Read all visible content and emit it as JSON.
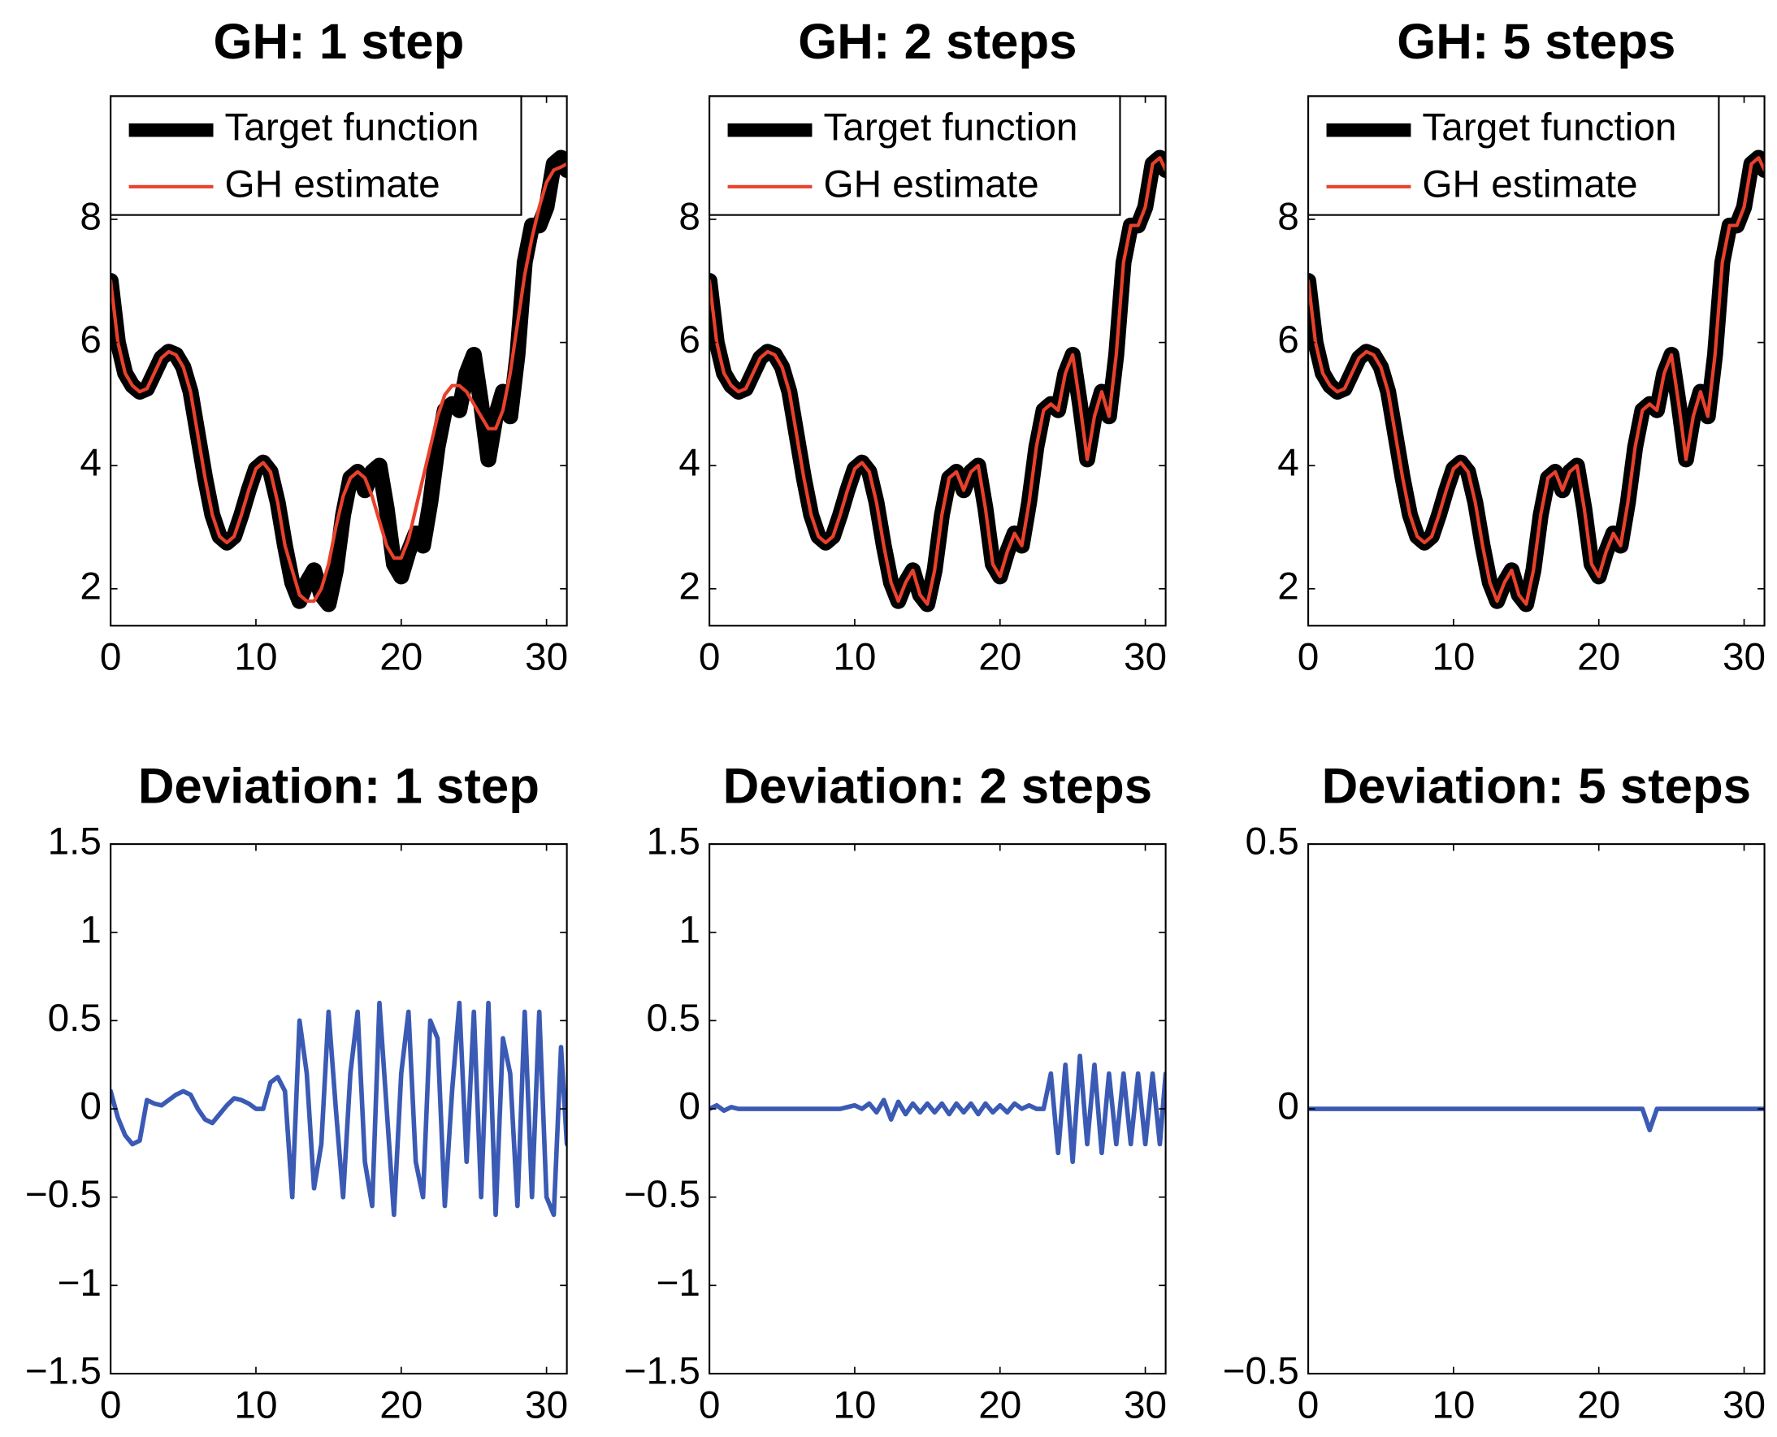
{
  "chart_data": [
    {
      "type": "line",
      "title": "GH: 1 step",
      "legend": "upper left",
      "x": [
        0,
        0.5,
        1,
        1.5,
        2,
        2.5,
        3,
        3.5,
        4,
        4.5,
        5,
        5.5,
        6,
        6.5,
        7,
        7.5,
        8,
        8.5,
        9,
        9.5,
        10,
        10.5,
        11,
        11.5,
        12,
        12.5,
        13,
        13.5,
        14,
        14.5,
        15,
        15.5,
        16,
        16.5,
        17,
        17.5,
        18,
        18.5,
        19,
        19.5,
        20,
        20.5,
        21,
        21.5,
        22,
        22.5,
        23,
        23.5,
        24,
        24.5,
        25,
        25.5,
        26,
        26.5,
        27,
        27.5,
        28,
        28.5,
        29,
        29.5,
        30,
        30.5,
        31,
        31.4
      ],
      "series": [
        {
          "name": "Target function",
          "color": "#000000",
          "values": [
            7,
            6.0,
            5.5,
            5.3,
            5.2,
            5.25,
            5.5,
            5.75,
            5.85,
            5.8,
            5.6,
            5.2,
            4.5,
            3.8,
            3.2,
            2.85,
            2.75,
            2.85,
            3.2,
            3.6,
            3.95,
            4.05,
            3.9,
            3.4,
            2.7,
            2.1,
            1.8,
            2.1,
            2.3,
            1.9,
            1.75,
            2.3,
            3.2,
            3.8,
            3.9,
            3.6,
            3.9,
            4.0,
            3.3,
            2.4,
            2.2,
            2.6,
            2.9,
            2.7,
            3.4,
            4.3,
            4.9,
            5.0,
            4.9,
            5.5,
            5.8,
            5.0,
            4.1,
            4.8,
            5.2,
            4.8,
            5.8,
            7.3,
            7.9,
            7.9,
            8.2,
            8.9,
            9.0,
            8.8
          ]
        },
        {
          "name": "GH estimate",
          "color": "#e8412c",
          "values": [
            7,
            6.0,
            5.5,
            5.3,
            5.2,
            5.25,
            5.5,
            5.75,
            5.85,
            5.8,
            5.6,
            5.2,
            4.5,
            3.8,
            3.2,
            2.85,
            2.75,
            2.85,
            3.2,
            3.6,
            3.95,
            4.05,
            3.9,
            3.4,
            2.7,
            2.3,
            1.9,
            1.8,
            1.8,
            2.0,
            2.4,
            3.0,
            3.5,
            3.8,
            3.9,
            3.8,
            3.5,
            3.1,
            2.7,
            2.5,
            2.5,
            2.8,
            3.3,
            3.8,
            4.3,
            4.8,
            5.15,
            5.3,
            5.3,
            5.2,
            5.0,
            4.8,
            4.6,
            4.6,
            4.9,
            5.5,
            6.3,
            7.1,
            7.7,
            8.2,
            8.6,
            8.8,
            8.85,
            8.9
          ]
        }
      ],
      "xlim": [
        0,
        31.4
      ],
      "xticks": [
        0,
        10,
        20,
        30
      ],
      "ylim": [
        1.4,
        10
      ],
      "yticks": [
        2,
        4,
        6,
        8
      ]
    },
    {
      "type": "line",
      "title": "GH: 2 steps",
      "legend": "upper left",
      "x": [
        0,
        0.5,
        1,
        1.5,
        2,
        2.5,
        3,
        3.5,
        4,
        4.5,
        5,
        5.5,
        6,
        6.5,
        7,
        7.5,
        8,
        8.5,
        9,
        9.5,
        10,
        10.5,
        11,
        11.5,
        12,
        12.5,
        13,
        13.5,
        14,
        14.5,
        15,
        15.5,
        16,
        16.5,
        17,
        17.5,
        18,
        18.5,
        19,
        19.5,
        20,
        20.5,
        21,
        21.5,
        22,
        22.5,
        23,
        23.5,
        24,
        24.5,
        25,
        25.5,
        26,
        26.5,
        27,
        27.5,
        28,
        28.5,
        29,
        29.5,
        30,
        30.5,
        31,
        31.4
      ],
      "series": [
        {
          "name": "Target function",
          "color": "#000000",
          "values": [
            7,
            6.0,
            5.5,
            5.3,
            5.2,
            5.25,
            5.5,
            5.75,
            5.85,
            5.8,
            5.6,
            5.2,
            4.5,
            3.8,
            3.2,
            2.85,
            2.75,
            2.85,
            3.2,
            3.6,
            3.95,
            4.05,
            3.9,
            3.4,
            2.7,
            2.1,
            1.8,
            2.1,
            2.3,
            1.9,
            1.75,
            2.3,
            3.2,
            3.8,
            3.9,
            3.6,
            3.9,
            4.0,
            3.3,
            2.4,
            2.2,
            2.6,
            2.9,
            2.7,
            3.4,
            4.3,
            4.9,
            5.0,
            4.9,
            5.5,
            5.8,
            5.0,
            4.1,
            4.8,
            5.2,
            4.8,
            5.8,
            7.3,
            7.9,
            7.9,
            8.2,
            8.9,
            9.0,
            8.8
          ]
        },
        {
          "name": "GH estimate",
          "color": "#e8412c",
          "values": [
            7,
            6.0,
            5.5,
            5.3,
            5.2,
            5.25,
            5.5,
            5.75,
            5.85,
            5.8,
            5.6,
            5.2,
            4.5,
            3.8,
            3.2,
            2.85,
            2.75,
            2.85,
            3.2,
            3.6,
            3.95,
            4.05,
            3.9,
            3.4,
            2.7,
            2.1,
            1.8,
            2.1,
            2.3,
            1.9,
            1.75,
            2.3,
            3.2,
            3.8,
            3.9,
            3.6,
            3.9,
            4.0,
            3.3,
            2.4,
            2.2,
            2.6,
            2.9,
            2.7,
            3.4,
            4.3,
            4.9,
            5.0,
            4.9,
            5.5,
            5.8,
            5.0,
            4.1,
            4.8,
            5.2,
            4.8,
            5.8,
            7.3,
            7.9,
            7.9,
            8.2,
            8.9,
            9.0,
            8.8
          ]
        }
      ],
      "xlim": [
        0,
        31.4
      ],
      "xticks": [
        0,
        10,
        20,
        30
      ],
      "ylim": [
        1.4,
        10
      ],
      "yticks": [
        2,
        4,
        6,
        8
      ]
    },
    {
      "type": "line",
      "title": "GH: 5 steps",
      "legend": "upper left",
      "x": [
        0,
        0.5,
        1,
        1.5,
        2,
        2.5,
        3,
        3.5,
        4,
        4.5,
        5,
        5.5,
        6,
        6.5,
        7,
        7.5,
        8,
        8.5,
        9,
        9.5,
        10,
        10.5,
        11,
        11.5,
        12,
        12.5,
        13,
        13.5,
        14,
        14.5,
        15,
        15.5,
        16,
        16.5,
        17,
        17.5,
        18,
        18.5,
        19,
        19.5,
        20,
        20.5,
        21,
        21.5,
        22,
        22.5,
        23,
        23.5,
        24,
        24.5,
        25,
        25.5,
        26,
        26.5,
        27,
        27.5,
        28,
        28.5,
        29,
        29.5,
        30,
        30.5,
        31,
        31.4
      ],
      "series": [
        {
          "name": "Target function",
          "color": "#000000",
          "values": [
            7,
            6.0,
            5.5,
            5.3,
            5.2,
            5.25,
            5.5,
            5.75,
            5.85,
            5.8,
            5.6,
            5.2,
            4.5,
            3.8,
            3.2,
            2.85,
            2.75,
            2.85,
            3.2,
            3.6,
            3.95,
            4.05,
            3.9,
            3.4,
            2.7,
            2.1,
            1.8,
            2.1,
            2.3,
            1.9,
            1.75,
            2.3,
            3.2,
            3.8,
            3.9,
            3.6,
            3.9,
            4.0,
            3.3,
            2.4,
            2.2,
            2.6,
            2.9,
            2.7,
            3.4,
            4.3,
            4.9,
            5.0,
            4.9,
            5.5,
            5.8,
            5.0,
            4.1,
            4.8,
            5.2,
            4.8,
            5.8,
            7.3,
            7.9,
            7.9,
            8.2,
            8.9,
            9.0,
            8.8
          ]
        },
        {
          "name": "GH estimate",
          "color": "#e8412c",
          "values": [
            7,
            6.0,
            5.5,
            5.3,
            5.2,
            5.25,
            5.5,
            5.75,
            5.85,
            5.8,
            5.6,
            5.2,
            4.5,
            3.8,
            3.2,
            2.85,
            2.75,
            2.85,
            3.2,
            3.6,
            3.95,
            4.05,
            3.9,
            3.4,
            2.7,
            2.1,
            1.8,
            2.1,
            2.3,
            1.9,
            1.75,
            2.3,
            3.2,
            3.8,
            3.9,
            3.6,
            3.9,
            4.0,
            3.3,
            2.4,
            2.2,
            2.6,
            2.9,
            2.7,
            3.4,
            4.3,
            4.9,
            5.0,
            4.9,
            5.5,
            5.8,
            5.0,
            4.1,
            4.8,
            5.2,
            4.8,
            5.8,
            7.3,
            7.9,
            7.9,
            8.2,
            8.9,
            9.0,
            8.8
          ]
        }
      ],
      "xlim": [
        0,
        31.4
      ],
      "xticks": [
        0,
        10,
        20,
        30
      ],
      "ylim": [
        1.4,
        10
      ],
      "yticks": [
        2,
        4,
        6,
        8
      ]
    },
    {
      "type": "line",
      "title": "Deviation: 1 step",
      "x": [
        0,
        0.5,
        1,
        1.5,
        2,
        2.5,
        3,
        3.5,
        4,
        4.5,
        5,
        5.5,
        6,
        6.5,
        7,
        7.5,
        8,
        8.5,
        9,
        9.5,
        10,
        10.5,
        11,
        11.5,
        12,
        12.5,
        13,
        13.5,
        14,
        14.5,
        15,
        15.5,
        16,
        16.5,
        17,
        17.5,
        18,
        18.5,
        19,
        19.5,
        20,
        20.5,
        21,
        21.5,
        22,
        22.5,
        23,
        23.5,
        24,
        24.5,
        25,
        25.5,
        26,
        26.5,
        27,
        27.5,
        28,
        28.5,
        29,
        29.5,
        30,
        30.5,
        31,
        31.4
      ],
      "series": [
        {
          "color": "#3a5ab4",
          "values": [
            0.1,
            -0.05,
            -0.15,
            -0.2,
            -0.18,
            0.05,
            0.03,
            0.02,
            0.05,
            0.08,
            0.1,
            0.08,
            0,
            -0.06,
            -0.08,
            -0.03,
            0.02,
            0.06,
            0.05,
            0.03,
            0,
            0,
            0.15,
            0.18,
            0.1,
            -0.5,
            0.5,
            0.2,
            -0.45,
            -0.2,
            0.55,
            0,
            -0.5,
            0.2,
            0.55,
            -0.3,
            -0.55,
            0.6,
            0,
            -0.6,
            0.2,
            0.55,
            -0.3,
            -0.5,
            0.5,
            0.4,
            -0.55,
            0.1,
            0.6,
            -0.3,
            0.55,
            -0.5,
            0.6,
            -0.6,
            0.4,
            0.2,
            -0.55,
            0.55,
            -0.5,
            0.55,
            -0.5,
            -0.6,
            0.35,
            -0.2
          ]
        }
      ],
      "xlim": [
        0,
        31.4
      ],
      "xticks": [
        0,
        10,
        20,
        30
      ],
      "ylim": [
        -1.5,
        1.5
      ],
      "yticks": [
        {
          "value": -1.5,
          "label": "−1.5"
        },
        {
          "value": -1,
          "label": "−1"
        },
        {
          "value": -0.5,
          "label": "−0.5"
        },
        0,
        0.5,
        1,
        1.5
      ]
    },
    {
      "type": "line",
      "title": "Deviation: 2 steps",
      "x": [
        0,
        0.5,
        1,
        1.5,
        2,
        2.5,
        3,
        3.5,
        4,
        4.5,
        5,
        5.5,
        6,
        6.5,
        7,
        7.5,
        8,
        8.5,
        9,
        9.5,
        10,
        10.5,
        11,
        11.5,
        12,
        12.5,
        13,
        13.5,
        14,
        14.5,
        15,
        15.5,
        16,
        16.5,
        17,
        17.5,
        18,
        18.5,
        19,
        19.5,
        20,
        20.5,
        21,
        21.5,
        22,
        22.5,
        23,
        23.5,
        24,
        24.5,
        25,
        25.5,
        26,
        26.5,
        27,
        27.5,
        28,
        28.5,
        29,
        29.5,
        30,
        30.5,
        31,
        31.4
      ],
      "series": [
        {
          "color": "#3a5ab4",
          "values": [
            0,
            0.02,
            -0.01,
            0.01,
            0,
            0,
            0,
            0,
            0,
            0,
            0,
            0,
            0,
            0,
            0,
            0,
            0,
            0,
            0,
            0.01,
            0.02,
            0,
            0.03,
            -0.02,
            0.05,
            -0.06,
            0.04,
            -0.03,
            0.03,
            -0.02,
            0.03,
            -0.02,
            0.03,
            -0.03,
            0.03,
            -0.02,
            0.03,
            -0.03,
            0.03,
            -0.02,
            0.02,
            -0.02,
            0.03,
            0,
            0.02,
            0,
            0,
            0.2,
            -0.25,
            0.25,
            -0.3,
            0.3,
            -0.2,
            0.25,
            -0.25,
            0.2,
            -0.2,
            0.2,
            -0.2,
            0.2,
            -0.2,
            0.2,
            -0.2,
            0.2
          ]
        }
      ],
      "xlim": [
        0,
        31.4
      ],
      "xticks": [
        0,
        10,
        20,
        30
      ],
      "ylim": [
        -1.5,
        1.5
      ],
      "yticks": [
        {
          "value": -1.5,
          "label": "−1.5"
        },
        {
          "value": -1,
          "label": "−1"
        },
        {
          "value": -0.5,
          "label": "−0.5"
        },
        0,
        0.5,
        1,
        1.5
      ]
    },
    {
      "type": "line",
      "title": "Deviation: 5 steps",
      "x": [
        0,
        0.5,
        1,
        1.5,
        2,
        2.5,
        3,
        3.5,
        4,
        4.5,
        5,
        5.5,
        6,
        6.5,
        7,
        7.5,
        8,
        8.5,
        9,
        9.5,
        10,
        10.5,
        11,
        11.5,
        12,
        12.5,
        13,
        13.5,
        14,
        14.5,
        15,
        15.5,
        16,
        16.5,
        17,
        17.5,
        18,
        18.5,
        19,
        19.5,
        20,
        20.5,
        21,
        21.5,
        22,
        22.5,
        23,
        23.5,
        24,
        24.5,
        25,
        25.5,
        26,
        26.5,
        27,
        27.5,
        28,
        28.5,
        29,
        29.5,
        30,
        30.5,
        31,
        31.4
      ],
      "series": [
        {
          "color": "#3a5ab4",
          "values": [
            0,
            0,
            0,
            0,
            0,
            0,
            0,
            0,
            0,
            0,
            0,
            0,
            0,
            0,
            0,
            0,
            0,
            0,
            0,
            0,
            0,
            0,
            0,
            0,
            0,
            0,
            0,
            0,
            0,
            0,
            0,
            0,
            0,
            0,
            0,
            0,
            0,
            0,
            0,
            0,
            0,
            0,
            0,
            0,
            0,
            0,
            0,
            -0.04,
            0,
            0,
            0,
            0,
            0,
            0,
            0,
            0,
            0,
            0,
            0,
            0,
            0,
            0,
            0,
            0
          ]
        }
      ],
      "xlim": [
        0,
        31.4
      ],
      "xticks": [
        0,
        10,
        20,
        30
      ],
      "ylim": [
        -0.5,
        0.5
      ],
      "yticks": [
        {
          "value": -0.5,
          "label": "−0.5"
        },
        0,
        0.5
      ]
    }
  ]
}
